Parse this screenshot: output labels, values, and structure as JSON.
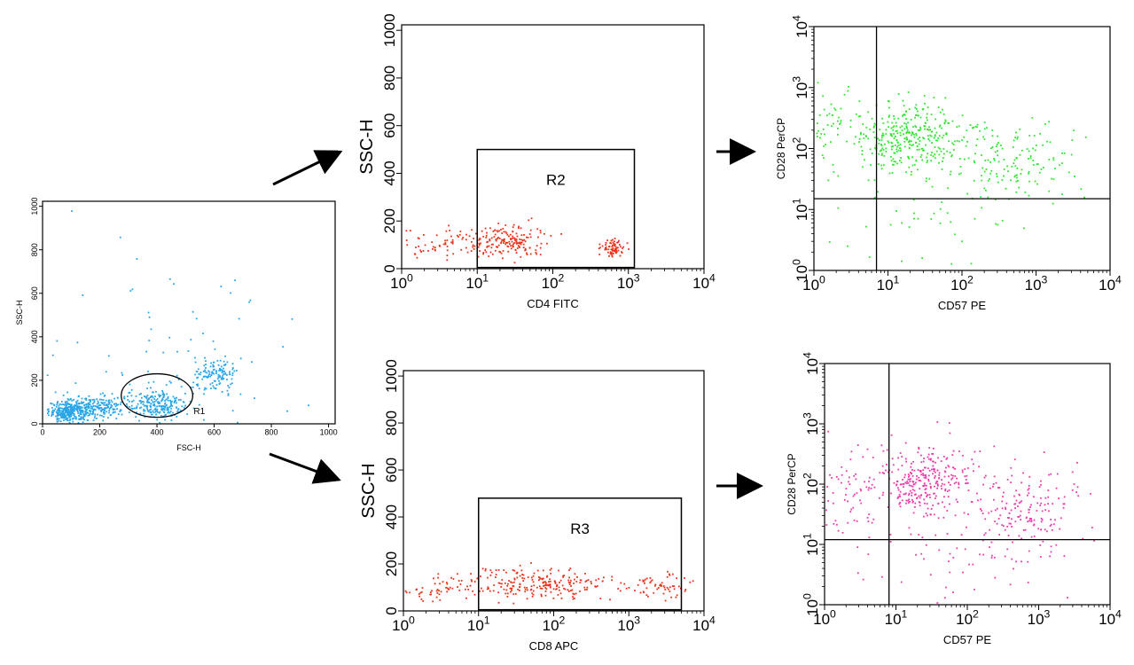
{
  "chart_data": [
    {
      "id": "p0",
      "type": "scatter",
      "xlabel": "FSC-H",
      "ylabel": "SSC-H",
      "xscale": "linear",
      "yscale": "linear",
      "xlim": [
        0,
        1023
      ],
      "ylim": [
        0,
        1023
      ],
      "xticks": [
        "0",
        "200",
        "400",
        "600",
        "800",
        "1000"
      ],
      "yticks": [
        "0",
        "200",
        "400",
        "600",
        "800",
        "1000"
      ],
      "xtick_values": [
        0,
        200,
        400,
        600,
        800,
        1000
      ],
      "ytick_values": [
        0,
        200,
        400,
        600,
        800,
        1000
      ],
      "point_color": "#29a6e8",
      "clusters": [
        {
          "cx": 90,
          "cy": 60,
          "sx": 35,
          "sy": 25,
          "n": 300
        },
        {
          "cx": 190,
          "cy": 80,
          "sx": 55,
          "sy": 25,
          "n": 200
        },
        {
          "cx": 400,
          "cy": 95,
          "sx": 55,
          "sy": 35,
          "n": 220
        },
        {
          "cx": 600,
          "cy": 220,
          "sx": 40,
          "sy": 40,
          "n": 130
        },
        {
          "cx": 480,
          "cy": 280,
          "sx": 240,
          "sy": 240,
          "n": 80
        }
      ],
      "gates": [
        {
          "shape": "ellipse",
          "label": "R1",
          "center": [
            400,
            130
          ],
          "radius": [
            125,
            100
          ]
        }
      ]
    },
    {
      "id": "p1",
      "type": "scatter",
      "xlabel": "CD4 FITC",
      "ylabel": "SSC-H",
      "xscale": "log",
      "yscale": "linear",
      "xlim": [
        1,
        10000
      ],
      "ylim": [
        0,
        1023
      ],
      "xticks": [
        "10^0",
        "10^1",
        "10^2",
        "10^3",
        "10^4"
      ],
      "yticks": [
        "0",
        "200",
        "400",
        "600",
        "800",
        "1000"
      ],
      "ytick_values": [
        0,
        200,
        400,
        600,
        800,
        1000
      ],
      "point_color": "#e8321a",
      "clusters": [
        {
          "cx": 4,
          "cy": 110,
          "lsx": 0.5,
          "sy": 35,
          "n": 90
        },
        {
          "cx": 25,
          "cy": 120,
          "lsx": 0.25,
          "sy": 35,
          "n": 160
        },
        {
          "cx": 600,
          "cy": 90,
          "lsx": 0.08,
          "sy": 20,
          "n": 70
        }
      ],
      "gates": [
        {
          "shape": "rect",
          "label": "R2",
          "x": [
            10,
            1200
          ],
          "y": [
            5,
            500
          ]
        }
      ]
    },
    {
      "id": "p2",
      "type": "scatter",
      "xlabel": "CD8 APC",
      "ylabel": "SSC-H",
      "xscale": "log",
      "yscale": "linear",
      "xlim": [
        1,
        10000
      ],
      "ylim": [
        0,
        1023
      ],
      "xticks": [
        "10^0",
        "10^1",
        "10^2",
        "10^3",
        "10^4"
      ],
      "yticks": [
        "0",
        "200",
        "400",
        "600",
        "800",
        "1000"
      ],
      "ytick_values": [
        0,
        200,
        400,
        600,
        800,
        1000
      ],
      "point_color": "#e8321a",
      "clusters": [
        {
          "cx": 3,
          "cy": 100,
          "lsx": 0.4,
          "sy": 30,
          "n": 60
        },
        {
          "cx": 60,
          "cy": 115,
          "lsx": 0.5,
          "sy": 35,
          "n": 230
        },
        {
          "cx": 2500,
          "cy": 110,
          "lsx": 0.2,
          "sy": 30,
          "n": 60
        }
      ],
      "gates": [
        {
          "shape": "rect",
          "label": "R3",
          "x": [
            10,
            5000
          ],
          "y": [
            5,
            480
          ]
        }
      ]
    },
    {
      "id": "p3",
      "type": "scatter",
      "xlabel": "CD57 PE",
      "ylabel": "CD28 PerCP",
      "xscale": "log",
      "yscale": "log",
      "xlim": [
        1,
        10000
      ],
      "ylim": [
        1,
        10000
      ],
      "xticks": [
        "10^0",
        "10^1",
        "10^2",
        "10^3",
        "10^4"
      ],
      "yticks": [
        "10^0",
        "10^1",
        "10^2",
        "10^3",
        "10^4"
      ],
      "point_color": "#2ee62e",
      "clusters": [
        {
          "cx": 20,
          "cy": 150,
          "lsx": 0.35,
          "lsy": 0.3,
          "n": 330
        },
        {
          "cx": 2,
          "cy": 180,
          "lsx": 0.3,
          "lsy": 0.35,
          "n": 70
        },
        {
          "cx": 400,
          "cy": 60,
          "lsx": 0.45,
          "lsy": 0.35,
          "n": 150
        },
        {
          "cx": 30,
          "cy": 5,
          "lsx": 0.8,
          "lsy": 0.5,
          "n": 40
        }
      ],
      "quadrant": {
        "x": 7,
        "y": 15
      }
    },
    {
      "id": "p4",
      "type": "scatter",
      "xlabel": "CD57 PE",
      "ylabel": "CD28 PerCP",
      "xscale": "log",
      "yscale": "log",
      "xlim": [
        1,
        10000
      ],
      "ylim": [
        1,
        10000
      ],
      "xticks": [
        "10^0",
        "10^1",
        "10^2",
        "10^3",
        "10^4"
      ],
      "yticks": [
        "10^0",
        "10^1",
        "10^2",
        "10^3",
        "10^4"
      ],
      "point_color": "#ee3aa8",
      "clusters": [
        {
          "cx": 25,
          "cy": 120,
          "lsx": 0.35,
          "lsy": 0.3,
          "n": 300
        },
        {
          "cx": 2,
          "cy": 80,
          "lsx": 0.3,
          "lsy": 0.4,
          "n": 80
        },
        {
          "cx": 600,
          "cy": 40,
          "lsx": 0.4,
          "lsy": 0.35,
          "n": 170
        },
        {
          "cx": 40,
          "cy": 5,
          "lsx": 0.8,
          "lsy": 0.5,
          "n": 60
        }
      ],
      "quadrant": {
        "x": 8,
        "y": 12
      }
    }
  ]
}
